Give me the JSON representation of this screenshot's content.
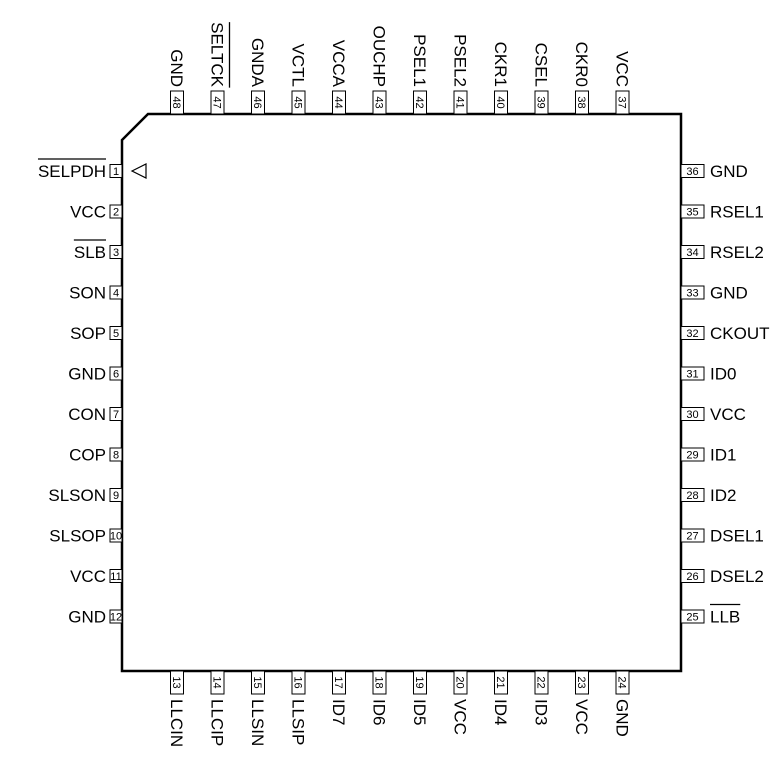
{
  "colors": {
    "line": "#000000",
    "background": "#ffffff"
  },
  "pin1_marker_icon": "triangle-left-outline",
  "pins": {
    "left": [
      {
        "num": "1",
        "label": "SELPDH",
        "overbar": true
      },
      {
        "num": "2",
        "label": "VCC"
      },
      {
        "num": "3",
        "label": "SLB",
        "overbar": true
      },
      {
        "num": "4",
        "label": "SON"
      },
      {
        "num": "5",
        "label": "SOP"
      },
      {
        "num": "6",
        "label": "GND"
      },
      {
        "num": "7",
        "label": "CON"
      },
      {
        "num": "8",
        "label": "COP"
      },
      {
        "num": "9",
        "label": "SLSON"
      },
      {
        "num": "10",
        "label": "SLSOP"
      },
      {
        "num": "11",
        "label": "VCC"
      },
      {
        "num": "12",
        "label": "GND"
      }
    ],
    "bottom": [
      {
        "num": "13",
        "label": "LLCIN"
      },
      {
        "num": "14",
        "label": "LLCIP"
      },
      {
        "num": "15",
        "label": "LLSIN"
      },
      {
        "num": "16",
        "label": "LLSIP"
      },
      {
        "num": "17",
        "label": "ID7"
      },
      {
        "num": "18",
        "label": "ID6"
      },
      {
        "num": "19",
        "label": "ID5"
      },
      {
        "num": "20",
        "label": "VCC"
      },
      {
        "num": "21",
        "label": "ID4"
      },
      {
        "num": "22",
        "label": "ID3"
      },
      {
        "num": "23",
        "label": "VCC"
      },
      {
        "num": "24",
        "label": "GND"
      }
    ],
    "right": [
      {
        "num": "36",
        "label": "GND"
      },
      {
        "num": "35",
        "label": "RSEL1"
      },
      {
        "num": "34",
        "label": "RSEL2"
      },
      {
        "num": "33",
        "label": "GND"
      },
      {
        "num": "32",
        "label": "CKOUT"
      },
      {
        "num": "31",
        "label": "ID0"
      },
      {
        "num": "30",
        "label": "VCC"
      },
      {
        "num": "29",
        "label": "ID1"
      },
      {
        "num": "28",
        "label": "ID2"
      },
      {
        "num": "27",
        "label": "DSEL1"
      },
      {
        "num": "26",
        "label": "DSEL2"
      },
      {
        "num": "25",
        "label": "LLB",
        "overbar": true
      }
    ],
    "top": [
      {
        "num": "48",
        "label": "GND"
      },
      {
        "num": "47",
        "label": "SELTCK",
        "overbar": true
      },
      {
        "num": "46",
        "label": "GNDA"
      },
      {
        "num": "45",
        "label": "VCTL"
      },
      {
        "num": "44",
        "label": "VCCA"
      },
      {
        "num": "43",
        "label": "OUCHP"
      },
      {
        "num": "42",
        "label": "PSEL1"
      },
      {
        "num": "41",
        "label": "PSEL2"
      },
      {
        "num": "40",
        "label": "CKR1"
      },
      {
        "num": "39",
        "label": "CSEL"
      },
      {
        "num": "38",
        "label": "CKR0"
      },
      {
        "num": "37",
        "label": "VCC"
      }
    ]
  }
}
